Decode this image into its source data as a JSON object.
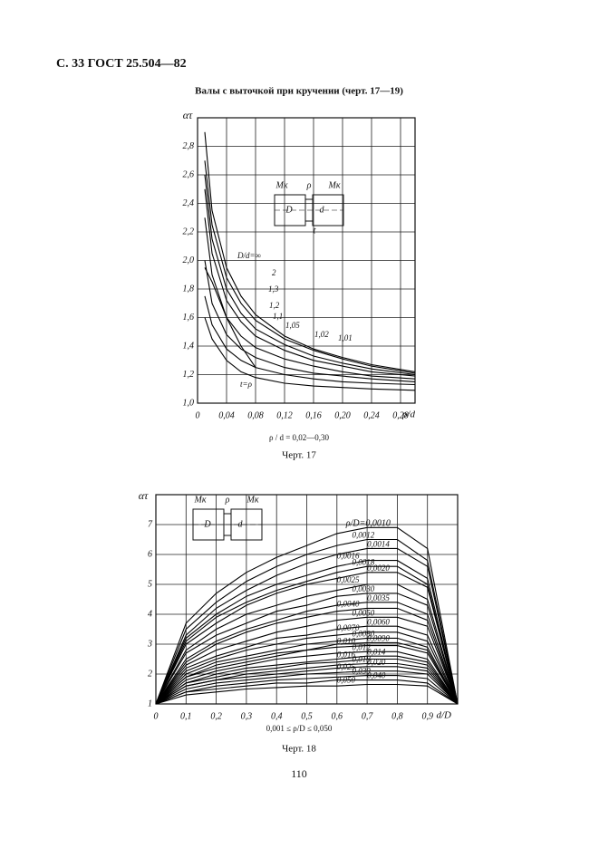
{
  "header": {
    "page": "С. 33 ГОСТ 25.504—82",
    "title": "Валы с выточкой при кручении (черт. 17—19)"
  },
  "chart_data": [
    {
      "type": "line",
      "y_label": "ατ",
      "x_label": "ρ/d",
      "note": "ρ / d = 0,02—0,30",
      "caption": "Черт. 17",
      "grid": true,
      "annotations": [
        "Mк",
        "ρ",
        "Mк",
        "D",
        "d",
        "t"
      ],
      "xlim": [
        0,
        0.3
      ],
      "ylim": [
        1.0,
        3.0
      ],
      "xticks": [
        0,
        {
          "value": 0.04,
          "label": "0,04"
        },
        {
          "value": 0.08,
          "label": "0,08"
        },
        {
          "value": 0.12,
          "label": "0,12"
        },
        {
          "value": 0.16,
          "label": "0,16"
        },
        {
          "value": 0.2,
          "label": "0,20"
        },
        {
          "value": 0.24,
          "label": "0,24"
        },
        {
          "value": 0.28,
          "label": "0,28"
        }
      ],
      "yticks": [
        {
          "value": 1.0,
          "label": "1,0"
        },
        {
          "value": 1.2,
          "label": "1,2"
        },
        {
          "value": 1.4,
          "label": "1,4"
        },
        {
          "value": 1.6,
          "label": "1,6"
        },
        {
          "value": 1.8,
          "label": "1,8"
        },
        {
          "value": 2.0,
          "label": "2,0"
        },
        {
          "value": 2.2,
          "label": "2,2"
        },
        {
          "value": 2.4,
          "label": "2,4"
        },
        {
          "value": 2.6,
          "label": "2,6"
        },
        {
          "value": 2.8,
          "label": "2,8"
        }
      ],
      "x": [
        0.01,
        0.02,
        0.04,
        0.06,
        0.08,
        0.12,
        0.16,
        0.2,
        0.24,
        0.3
      ],
      "series": [
        {
          "name": "D/d=∞",
          "color": "#000",
          "values": [
            2.9,
            2.35,
            1.95,
            1.75,
            1.62,
            1.47,
            1.38,
            1.32,
            1.27,
            1.22
          ]
        },
        {
          "name": "2",
          "color": "#000",
          "values": [
            2.7,
            2.25,
            1.88,
            1.7,
            1.58,
            1.45,
            1.37,
            1.31,
            1.26,
            1.21
          ]
        },
        {
          "name": "1,3",
          "color": "#000",
          "values": [
            2.6,
            2.15,
            1.8,
            1.63,
            1.52,
            1.41,
            1.33,
            1.28,
            1.24,
            1.2
          ]
        },
        {
          "name": "1,2",
          "color": "#000",
          "values": [
            2.5,
            2.05,
            1.72,
            1.57,
            1.47,
            1.37,
            1.3,
            1.26,
            1.22,
            1.19
          ]
        },
        {
          "name": "1,1",
          "color": "#000",
          "values": [
            2.3,
            1.9,
            1.6,
            1.47,
            1.39,
            1.31,
            1.26,
            1.22,
            1.19,
            1.17
          ]
        },
        {
          "name": "1,05",
          "color": "#000",
          "values": [
            2.0,
            1.7,
            1.48,
            1.38,
            1.32,
            1.25,
            1.21,
            1.19,
            1.17,
            1.15
          ]
        },
        {
          "name": "1,02",
          "color": "#000",
          "values": [
            1.75,
            1.55,
            1.38,
            1.3,
            1.25,
            1.2,
            1.17,
            1.15,
            1.14,
            1.13
          ]
        },
        {
          "name": "1,01",
          "color": "#000",
          "values": [
            1.6,
            1.45,
            1.3,
            1.22,
            1.18,
            1.14,
            1.12,
            1.11,
            1.1,
            1.09
          ]
        },
        {
          "name": "t=ρ",
          "color": "#000",
          "values": [
            1.95,
            1.85,
            1.6,
            1.4,
            1.25,
            null,
            null,
            null,
            null,
            null
          ]
        }
      ]
    },
    {
      "type": "line",
      "y_label": "ατ",
      "x_label": "d/D",
      "note": "0,001 ≤ ρ/D ≤ 0,050",
      "caption": "Черт. 18",
      "grid": true,
      "annotations": [
        "Mк",
        "ρ",
        "Mк",
        "D",
        "d"
      ],
      "xlim": [
        0,
        1.0
      ],
      "ylim": [
        1,
        8
      ],
      "xticks": [
        0,
        {
          "value": 0.1,
          "label": "0,1"
        },
        {
          "value": 0.2,
          "label": "0,2"
        },
        {
          "value": 0.3,
          "label": "0,3"
        },
        {
          "value": 0.4,
          "label": "0,4"
        },
        {
          "value": 0.5,
          "label": "0,5"
        },
        {
          "value": 0.6,
          "label": "0,6"
        },
        {
          "value": 0.7,
          "label": "0,7"
        },
        {
          "value": 0.8,
          "label": "0,8"
        },
        {
          "value": 0.9,
          "label": "0,9"
        }
      ],
      "yticks": [
        1,
        2,
        3,
        4,
        5,
        6,
        7
      ],
      "x": [
        0,
        0.1,
        0.2,
        0.3,
        0.4,
        0.5,
        0.6,
        0.7,
        0.8,
        0.9,
        1.0
      ],
      "series": [
        {
          "name": "ρ/D=0,0010",
          "color": "#000",
          "values": [
            1,
            3.7,
            4.7,
            5.4,
            5.9,
            6.3,
            6.7,
            6.9,
            6.9,
            6.2,
            1
          ]
        },
        {
          "name": "0,0012",
          "color": "#000",
          "values": [
            1,
            3.5,
            4.4,
            5.1,
            5.6,
            6.0,
            6.3,
            6.5,
            6.5,
            5.8,
            1
          ]
        },
        {
          "name": "0,0014",
          "color": "#000",
          "values": [
            1,
            3.3,
            4.2,
            4.8,
            5.3,
            5.7,
            6.0,
            6.2,
            6.2,
            5.6,
            1
          ]
        },
        {
          "name": "0,0016",
          "color": "#000",
          "values": [
            1,
            3.2,
            4.0,
            4.6,
            5.0,
            5.3,
            5.6,
            5.8,
            5.8,
            5.2,
            1
          ]
        },
        {
          "name": "0,0018",
          "color": "#000",
          "values": [
            1,
            3.1,
            3.9,
            4.4,
            4.8,
            5.1,
            5.4,
            5.6,
            5.6,
            5.0,
            1
          ]
        },
        {
          "name": "0,0020",
          "color": "#000",
          "values": [
            1,
            3.0,
            3.7,
            4.3,
            4.7,
            5.0,
            5.2,
            5.4,
            5.4,
            4.9,
            1
          ]
        },
        {
          "name": "0,0025",
          "color": "#000",
          "values": [
            1,
            2.8,
            3.5,
            4.0,
            4.3,
            4.6,
            4.8,
            5.0,
            5.0,
            4.5,
            1
          ]
        },
        {
          "name": "0,0030",
          "color": "#000",
          "values": [
            1,
            2.7,
            3.3,
            3.7,
            4.1,
            4.3,
            4.6,
            4.7,
            4.7,
            4.3,
            1
          ]
        },
        {
          "name": "0,0035",
          "color": "#000",
          "values": [
            1,
            2.5,
            3.1,
            3.5,
            3.8,
            4.1,
            4.3,
            4.4,
            4.4,
            4.0,
            1
          ]
        },
        {
          "name": "0,0040",
          "color": "#000",
          "values": [
            1,
            2.4,
            3.0,
            3.4,
            3.7,
            3.9,
            4.1,
            4.2,
            4.2,
            3.8,
            1
          ]
        },
        {
          "name": "0,0050",
          "color": "#000",
          "values": [
            1,
            2.3,
            2.8,
            3.1,
            3.4,
            3.6,
            3.8,
            3.9,
            3.9,
            3.6,
            1
          ]
        },
        {
          "name": "0,0060",
          "color": "#000",
          "values": [
            1,
            2.2,
            2.6,
            2.9,
            3.2,
            3.3,
            3.5,
            3.6,
            3.6,
            3.3,
            1
          ]
        },
        {
          "name": "0,0070",
          "color": "#000",
          "values": [
            1,
            2.1,
            2.5,
            2.8,
            3.0,
            3.2,
            3.3,
            3.4,
            3.4,
            3.1,
            1
          ]
        },
        {
          "name": "0,0080",
          "color": "#000",
          "values": [
            1,
            2.0,
            2.4,
            2.6,
            2.8,
            3.0,
            3.1,
            3.2,
            3.2,
            2.9,
            1
          ]
        },
        {
          "name": "0,0090",
          "color": "#000",
          "values": [
            1,
            1.9,
            2.3,
            2.5,
            2.7,
            2.8,
            3.0,
            3.05,
            3.05,
            2.8,
            1
          ]
        },
        {
          "name": "0,010",
          "color": "#000",
          "values": [
            1,
            1.9,
            2.2,
            2.4,
            2.6,
            2.8,
            2.9,
            2.95,
            2.95,
            2.7,
            1
          ]
        },
        {
          "name": "0,012",
          "color": "#000",
          "values": [
            1,
            1.8,
            2.1,
            2.3,
            2.5,
            2.6,
            2.7,
            2.75,
            2.75,
            2.5,
            1
          ]
        },
        {
          "name": "0,014",
          "color": "#000",
          "values": [
            1,
            1.7,
            2.0,
            2.2,
            2.3,
            2.4,
            2.5,
            2.6,
            2.6,
            2.4,
            1
          ]
        },
        {
          "name": "0,016",
          "color": "#000",
          "values": [
            1,
            1.7,
            1.9,
            2.1,
            2.2,
            2.35,
            2.4,
            2.5,
            2.5,
            2.3,
            1
          ]
        },
        {
          "name": "0,018",
          "color": "#000",
          "values": [
            1,
            1.6,
            1.8,
            2.0,
            2.1,
            2.2,
            2.3,
            2.35,
            2.35,
            2.2,
            1
          ]
        },
        {
          "name": "0,020",
          "color": "#000",
          "values": [
            1,
            1.6,
            1.8,
            1.9,
            2.0,
            2.1,
            2.2,
            2.25,
            2.25,
            2.1,
            1
          ]
        },
        {
          "name": "0,025",
          "color": "#000",
          "values": [
            1,
            1.5,
            1.7,
            1.8,
            1.9,
            2.0,
            2.05,
            2.1,
            2.1,
            2.0,
            1
          ]
        },
        {
          "name": "0,030",
          "color": "#000",
          "values": [
            1,
            1.4,
            1.6,
            1.7,
            1.8,
            1.85,
            1.9,
            1.95,
            1.95,
            1.85,
            1
          ]
        },
        {
          "name": "0,040",
          "color": "#000",
          "values": [
            1,
            1.4,
            1.5,
            1.6,
            1.7,
            1.7,
            1.8,
            1.8,
            1.8,
            1.7,
            1
          ]
        },
        {
          "name": "0,050",
          "color": "#000",
          "values": [
            1,
            1.3,
            1.4,
            1.5,
            1.55,
            1.6,
            1.6,
            1.65,
            1.65,
            1.6,
            1
          ]
        }
      ]
    }
  ],
  "footer": {
    "page_number": "110"
  }
}
